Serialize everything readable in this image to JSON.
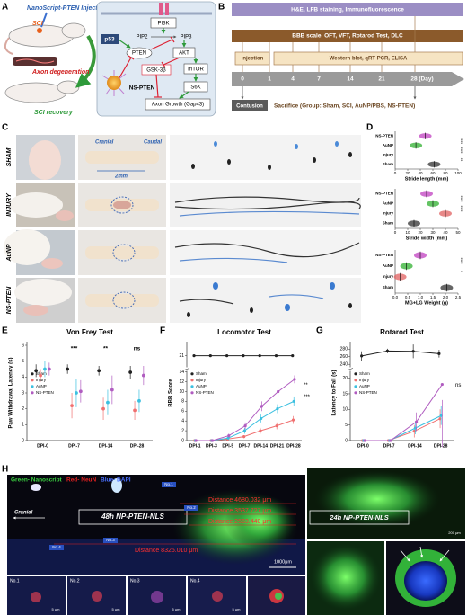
{
  "letters": [
    "A",
    "B",
    "C",
    "D",
    "E",
    "F",
    "G",
    "H"
  ],
  "panel_a": {
    "injection": "NanoScript-PTEN Injection",
    "sci": "SCI",
    "degeneration": "Axon degeneration",
    "recovery": "SCI recovery",
    "pathway": {
      "p53": "p53",
      "pi3k": "PI3K",
      "pip2": "PIP2",
      "pip3": "PIP3",
      "pten": "PTEN",
      "akt": "AKT",
      "gsk": "GSK-3β",
      "mtor": "mTOR",
      "s6k": "S6K",
      "ns_pten": "NS-PTEN",
      "axon_growth": "Axon Growth (Gap43)"
    }
  },
  "panel_b": {
    "staining": "H&E, LFB staining, Immunofluorescence",
    "behavior": "BBB scale, OFT, VFT, Rotarod Test, DLC",
    "injection": "Injection",
    "assays": "Western blot, qRT-PCR, ELISA",
    "days": [
      "0",
      "1",
      "4",
      "7",
      "14",
      "21",
      "28 (Day)"
    ],
    "contusion": "Contusion",
    "sacrifice": "Sacrifice (Group: Sham, SCI, AuNP/PBS, NS-PTEN)"
  },
  "panel_c": {
    "rows": [
      "SHAM",
      "INJURY",
      "AuNP",
      "NS-PTEN"
    ],
    "cranial": "Cranial",
    "caudal": "Caudal",
    "scale": "2mm"
  },
  "panel_h": {
    "legend_green": "Green- Nanoscript",
    "legend_red": "Red- NeuN",
    "legend_blue": "Blue- DAPI",
    "cranial": "Cranial",
    "label_48h": "48h NP-PTEN-NLS",
    "label_24h": "24h NP-PTEN-NLS",
    "distances": [
      "Distance 4680.032 μm",
      "Distance 3537.727 μm",
      "Distance 2563.440 μm",
      "Distance 8325.010 μm"
    ],
    "scale_main": "1000μm",
    "fields": [
      "No.1",
      "No.2",
      "No.3",
      "No.4"
    ],
    "scale_inset": "5 μm",
    "scale_24h": "200 μm"
  },
  "chart_data": [
    {
      "type": "dot",
      "categories": [
        "NS-PTEN",
        "AuNP",
        "Injury",
        "Sham"
      ],
      "values": [
        48,
        33,
        null,
        62
      ],
      "colors": [
        "#c040c0",
        "#30b030",
        "#e06060",
        "#333333"
      ],
      "xlabel": "Stride length (mm)",
      "xlim": [
        0,
        100
      ],
      "xticks": [
        0,
        20,
        40,
        60,
        80,
        100
      ],
      "annotations": [
        "****",
        "****",
        "**"
      ]
    },
    {
      "type": "dot",
      "categories": [
        "NS-PTEN",
        "AuNP",
        "Injury",
        "Sham"
      ],
      "values": [
        25,
        30,
        40,
        15
      ],
      "colors": [
        "#c040c0",
        "#30b030",
        "#e06060",
        "#333333"
      ],
      "xlabel": "Stride width (mm)",
      "xlim": [
        0,
        50
      ],
      "xticks": [
        0,
        10,
        20,
        30,
        40,
        50
      ],
      "annotations": [
        "****",
        "****"
      ]
    },
    {
      "type": "dot",
      "categories": [
        "NS-PTEN",
        "AuNP",
        "Injury",
        "Sham"
      ],
      "values": [
        1.0,
        0.45,
        0.2,
        2.05
      ],
      "colors": [
        "#c040c0",
        "#30b030",
        "#e06060",
        "#333333"
      ],
      "xlabel": "MG+LG Weight (g)",
      "xlim": [
        0,
        2.5
      ],
      "xticks": [
        {
          "value": 0,
          "label": "0.0"
        },
        {
          "value": 0.5,
          "label": "0.5"
        },
        {
          "value": 1,
          "label": "1.0"
        },
        {
          "value": 1.5,
          "label": "1.5"
        },
        {
          "value": 2,
          "label": "2.0"
        },
        {
          "value": 2.5,
          "label": "2.5"
        }
      ],
      "annotations": [
        "****",
        "*"
      ]
    },
    {
      "type": "errorbar",
      "title": "Von Frey Test",
      "ylabel": "Paw Withdrawal Latency (s)",
      "categories": [
        "DPI-0",
        "DPI-7",
        "DPI-14",
        "DPI-28"
      ],
      "ylim": [
        0,
        6
      ],
      "yticks": [
        0,
        1,
        2,
        3,
        4,
        5,
        6
      ],
      "series": [
        {
          "name": "Sham",
          "color": "#222222",
          "values": [
            4.4,
            4.5,
            4.4,
            4.3
          ],
          "errors": [
            0.4,
            0.3,
            0.3,
            0.4
          ]
        },
        {
          "name": "Injury",
          "color": "#f07070",
          "values": [
            4.1,
            2.2,
            2.0,
            1.9
          ],
          "errors": [
            0.4,
            0.8,
            0.7,
            0.6
          ]
        },
        {
          "name": "AuNP",
          "color": "#3cc0e0",
          "values": [
            4.5,
            3.0,
            2.4,
            2.5
          ],
          "errors": [
            0.5,
            0.9,
            0.8,
            0.7
          ]
        },
        {
          "name": "NS-PTEN",
          "color": "#b05cc0",
          "values": [
            4.5,
            3.1,
            3.2,
            4.1
          ],
          "errors": [
            0.4,
            0.7,
            0.9,
            0.6
          ]
        }
      ],
      "annotations": [
        "***",
        "**",
        "ns"
      ]
    },
    {
      "type": "line",
      "title": "Locomotor Test",
      "ylabel": "BBB Score",
      "categories": [
        "DPI-1",
        "DPI-3",
        "DPI-5",
        "DPI-7",
        "DPI-14",
        "DPI-21",
        "DPI-28"
      ],
      "ylim": [
        0,
        22
      ],
      "ybreak": [
        14,
        20
      ],
      "yticks": [
        0,
        2,
        4,
        6,
        8,
        10,
        12,
        14,
        21
      ],
      "series": [
        {
          "name": "Sham",
          "color": "#222222",
          "values": [
            21,
            21,
            21,
            21,
            21,
            21,
            21
          ],
          "errors": [
            0,
            0,
            0,
            0,
            0,
            0,
            0
          ]
        },
        {
          "name": "Injury",
          "color": "#f07070",
          "values": [
            0,
            0,
            0.3,
            0.8,
            2,
            3,
            4.2
          ],
          "errors": [
            0,
            0,
            0.2,
            0.3,
            0.6,
            0.7,
            0.8
          ]
        },
        {
          "name": "AuNP",
          "color": "#3cc0e0",
          "values": [
            0,
            0,
            0.5,
            2,
            4.5,
            6.5,
            8
          ],
          "errors": [
            0,
            0,
            0.3,
            0.6,
            0.8,
            0.9,
            1.0
          ]
        },
        {
          "name": "NS-PTEN",
          "color": "#b05cc0",
          "values": [
            0,
            0,
            1,
            3,
            7,
            10,
            12.5
          ],
          "errors": [
            0,
            0,
            0.4,
            0.7,
            1.0,
            1.0,
            0.8
          ]
        }
      ],
      "annotations": [
        "**",
        "***"
      ]
    },
    {
      "type": "line",
      "title": "Rotarod Test",
      "ylabel": "Latency to Fall (s)",
      "categories": [
        "DPI-0",
        "DPI-7",
        "DPI-14",
        "DPI-28"
      ],
      "ylim": [
        0,
        290
      ],
      "ybreak": [
        22,
        235
      ],
      "yticks": [
        0,
        5,
        10,
        15,
        20,
        240,
        260,
        280
      ],
      "series": [
        {
          "name": "Sham",
          "color": "#222222",
          "values": [
            262,
            275,
            274,
            268
          ],
          "errors": [
            12,
            6,
            18,
            10
          ]
        },
        {
          "name": "Injury",
          "color": "#f07070",
          "values": [
            0,
            0,
            3,
            7
          ],
          "errors": [
            0,
            0,
            2,
            3
          ]
        },
        {
          "name": "AuNP",
          "color": "#3cc0e0",
          "values": [
            0,
            0,
            4,
            8
          ],
          "errors": [
            0,
            0,
            2,
            3
          ]
        },
        {
          "name": "NS-PTEN",
          "color": "#b05cc0",
          "values": [
            0,
            0,
            6,
            18
          ],
          "errors": [
            0,
            0,
            3,
            5
          ]
        }
      ],
      "annotations": [
        "ns"
      ]
    }
  ]
}
